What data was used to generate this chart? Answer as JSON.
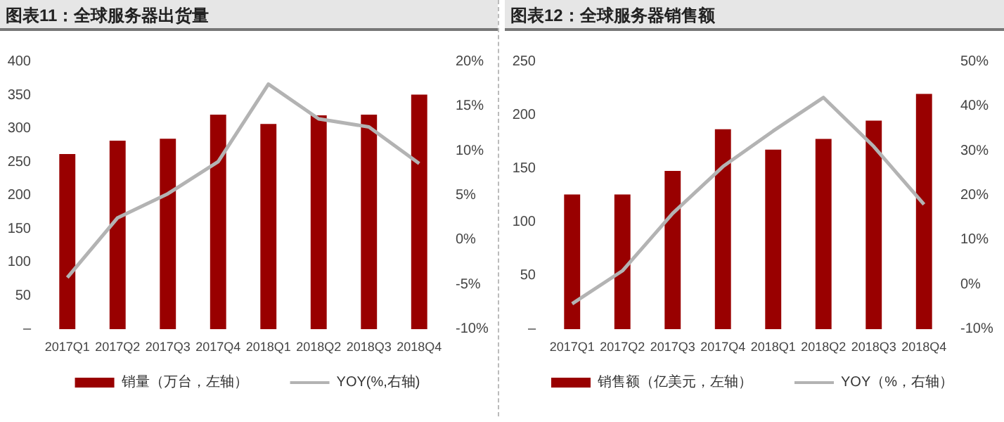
{
  "chart_data": [
    {
      "type": "bar",
      "title": "图表11：全球服务器出货量",
      "categories": [
        "2017Q1",
        "2017Q2",
        "2017Q3",
        "2017Q4",
        "2018Q1",
        "2018Q2",
        "2018Q3",
        "2018Q4"
      ],
      "series": [
        {
          "name": "销量（万台，左轴）",
          "color": "#990000",
          "values": [
            262,
            282,
            285,
            321,
            307,
            320,
            321,
            351
          ]
        },
        {
          "name": "YOY(%,右轴)",
          "type": "line",
          "axis": "y2",
          "color": "#b3b3b3",
          "values": [
            -4.2,
            2.5,
            5.2,
            8.8,
            17.5,
            13.6,
            12.7,
            8.6
          ]
        }
      ],
      "ylim": [
        0,
        400
      ],
      "yticks": [
        {
          "value": 0,
          "label": "–"
        },
        50,
        100,
        150,
        200,
        250,
        300,
        350,
        400
      ],
      "y2lim": [
        -10,
        20
      ],
      "y2ticks": [
        {
          "value": -10,
          "label": "-10%"
        },
        {
          "value": -5,
          "label": "-5%"
        },
        {
          "value": 0,
          "label": "0%"
        },
        {
          "value": 5,
          "label": "5%"
        },
        {
          "value": 10,
          "label": "10%"
        },
        {
          "value": 15,
          "label": "15%"
        },
        {
          "value": 20,
          "label": "20%"
        }
      ],
      "legend": "bottom",
      "marker": "none"
    },
    {
      "type": "bar",
      "title": "图表12：全球服务器销售额",
      "categories": [
        "2017Q1",
        "2017Q2",
        "2017Q3",
        "2017Q4",
        "2018Q1",
        "2018Q2",
        "2018Q3",
        "2018Q4"
      ],
      "series": [
        {
          "name": "销售额（亿美元，左轴）",
          "color": "#990000",
          "values": [
            126,
            126,
            148,
            187,
            168,
            178,
            195,
            220
          ]
        },
        {
          "name": "YOY（%，右轴）",
          "type": "line",
          "axis": "y2",
          "color": "#b3b3b3",
          "values": [
            -4.3,
            3.1,
            16,
            26.5,
            34.5,
            42,
            31,
            18
          ]
        }
      ],
      "ylim": [
        0,
        250
      ],
      "yticks": [
        {
          "value": 0,
          "label": "–"
        },
        50,
        100,
        150,
        200,
        250
      ],
      "y2lim": [
        -10,
        50
      ],
      "y2ticks": [
        {
          "value": -10,
          "label": "-10%"
        },
        {
          "value": 0,
          "label": "0%"
        },
        {
          "value": 10,
          "label": "10%"
        },
        {
          "value": 20,
          "label": "20%"
        },
        {
          "value": 30,
          "label": "30%"
        },
        {
          "value": 40,
          "label": "40%"
        },
        {
          "value": 50,
          "label": "50%"
        }
      ],
      "legend": "bottom",
      "marker": "none"
    }
  ]
}
